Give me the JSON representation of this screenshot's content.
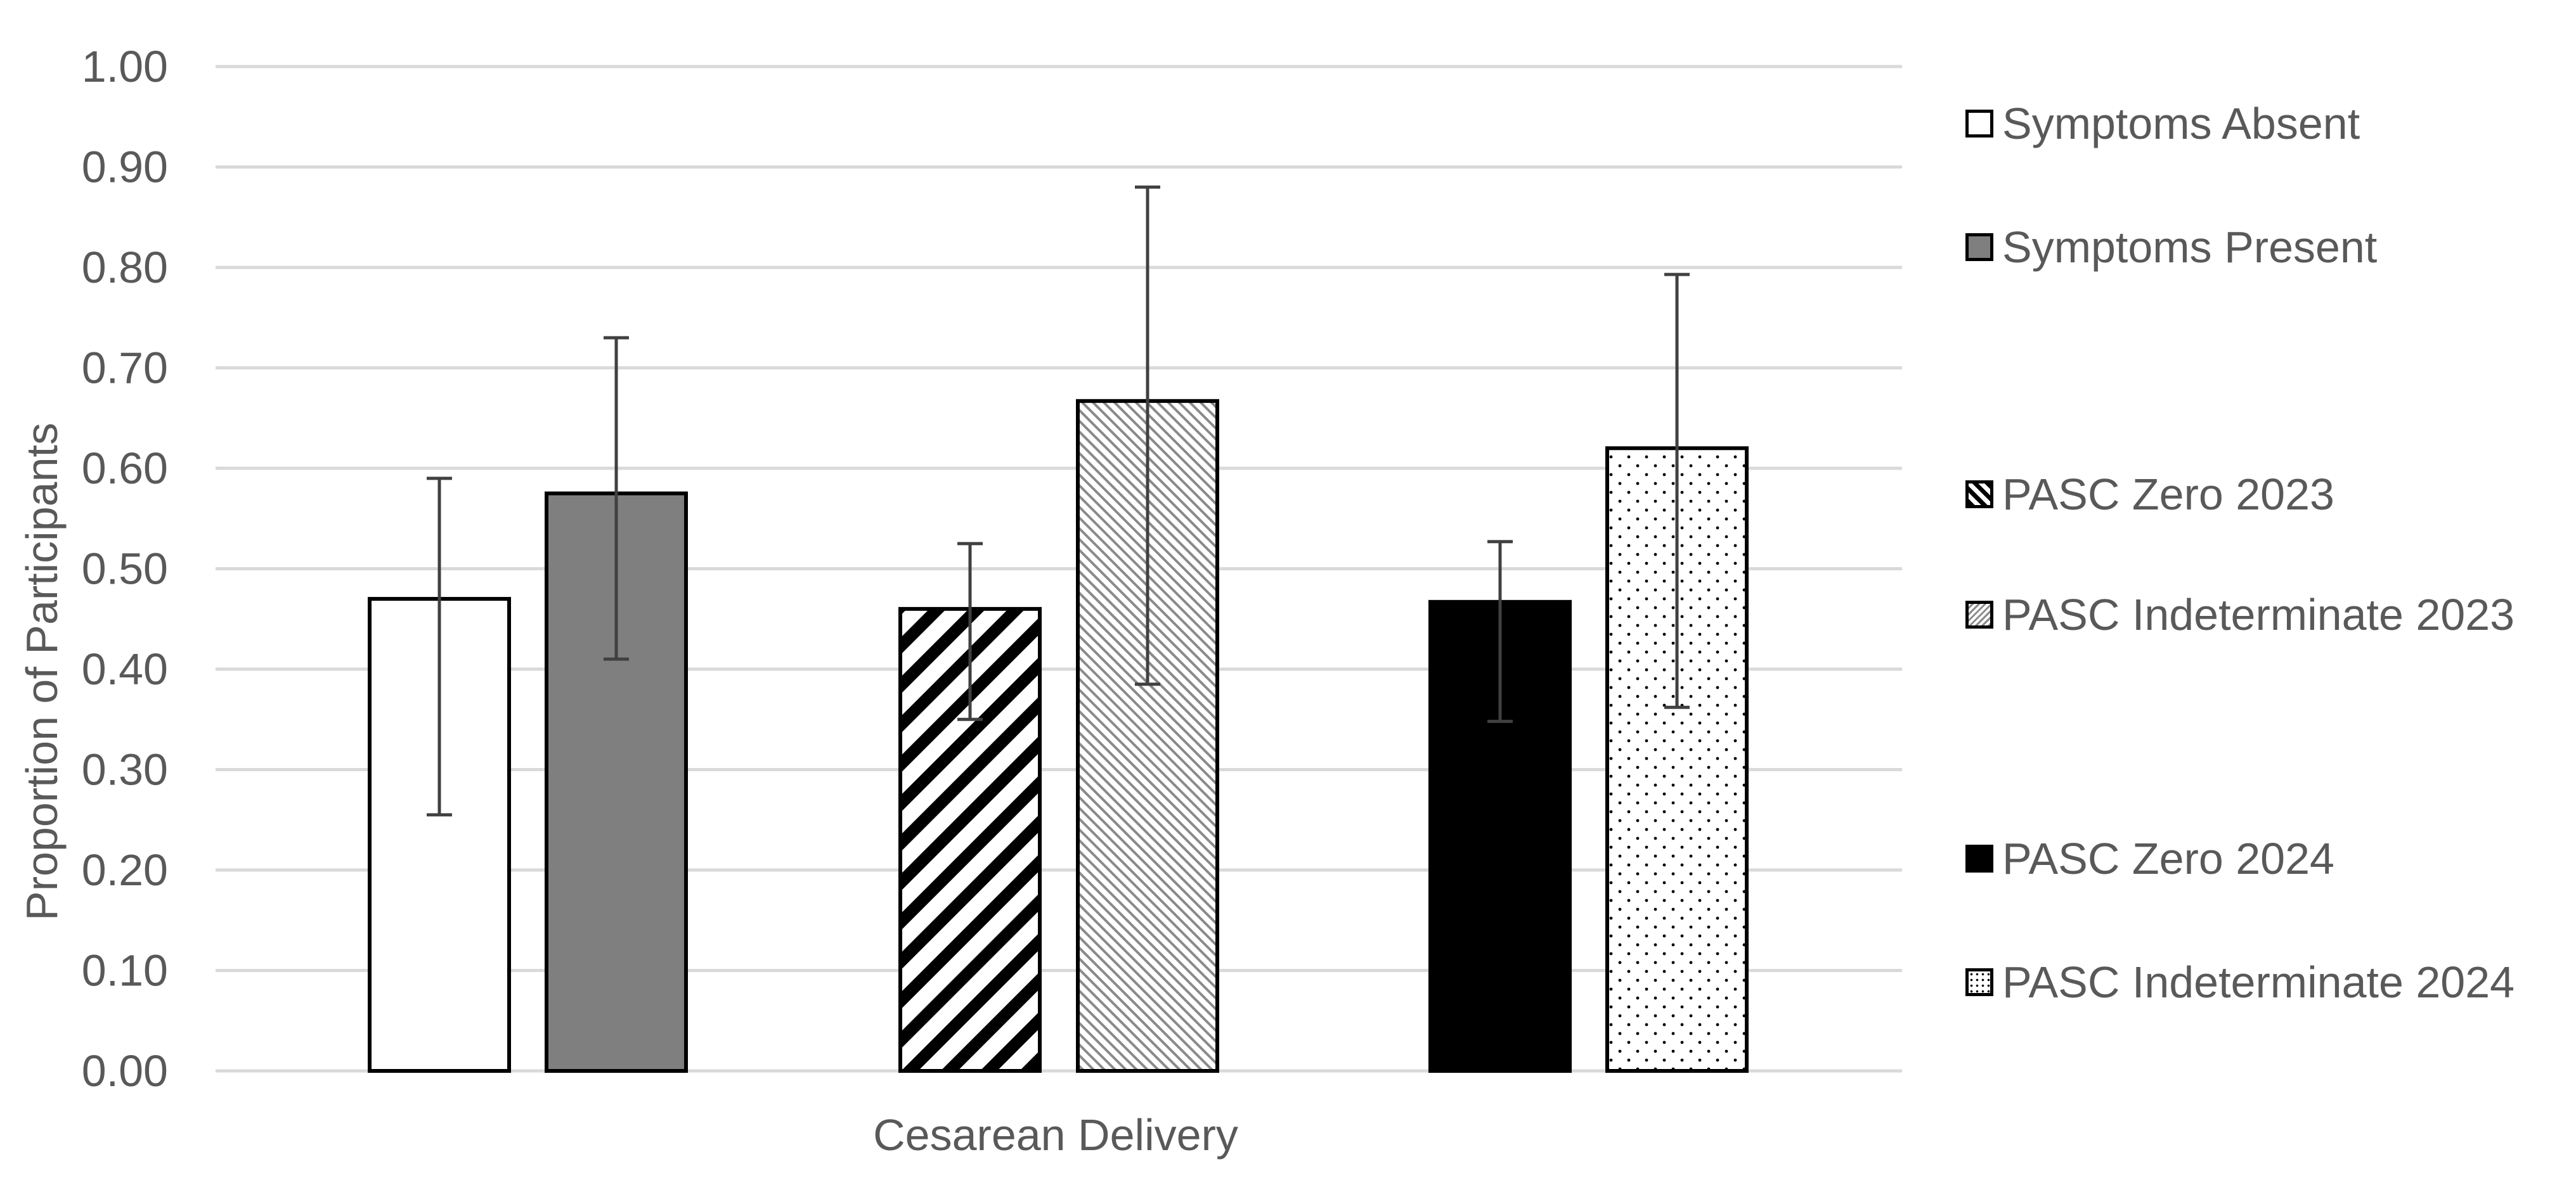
{
  "chart_data": {
    "type": "bar",
    "categories": [
      "Cesarean Delivery"
    ],
    "xlabel": "Cesarean Delivery",
    "ylabel": "Proportion of Participants",
    "ylim": [
      0,
      1
    ],
    "yticks": [
      "0.00",
      "0.10",
      "0.20",
      "0.30",
      "0.40",
      "0.50",
      "0.60",
      "0.70",
      "0.80",
      "0.90",
      "1.00"
    ],
    "grid": true,
    "legend_position": "right",
    "series": [
      {
        "name": "Symptoms Absent",
        "values": [
          0.47
        ],
        "error_low": [
          0.255
        ],
        "error_high": [
          0.59
        ],
        "fill": "#ffffff",
        "pattern": "none"
      },
      {
        "name": "Symptoms Present",
        "values": [
          0.575
        ],
        "error_low": [
          0.41
        ],
        "error_high": [
          0.73
        ],
        "fill": "#7f7f7f",
        "pattern": "none"
      },
      {
        "name": "PASC Zero 2023",
        "values": [
          0.46
        ],
        "error_low": [
          0.35
        ],
        "error_high": [
          0.525
        ],
        "fill": "#ffffff",
        "pattern": "wide-diagonal"
      },
      {
        "name": "PASC Indeterminate 2023",
        "values": [
          0.667
        ],
        "error_low": [
          0.385
        ],
        "error_high": [
          0.88
        ],
        "fill": "#ffffff",
        "pattern": "fine-diagonal"
      },
      {
        "name": "PASC Zero 2024",
        "values": [
          0.467
        ],
        "error_low": [
          0.348
        ],
        "error_high": [
          0.527
        ],
        "fill": "#000000",
        "pattern": "none"
      },
      {
        "name": "PASC Indeterminate 2024",
        "values": [
          0.62
        ],
        "error_low": [
          0.362
        ],
        "error_high": [
          0.793
        ],
        "fill": "#ffffff",
        "pattern": "dots"
      }
    ]
  },
  "colors": {
    "gridline": "#d9d9d9",
    "axis_text": "#595959",
    "bar_border": "#000000",
    "error_bar": "#404040"
  }
}
